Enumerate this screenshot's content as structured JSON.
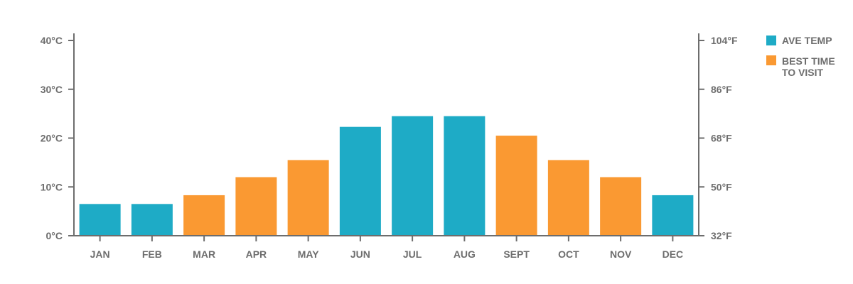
{
  "chart_data": {
    "type": "bar",
    "title": "",
    "xlabel": "",
    "ylabel": "",
    "categories": [
      "JAN",
      "FEB",
      "MAR",
      "APR",
      "MAY",
      "JUN",
      "JUL",
      "AUG",
      "SEPT",
      "OCT",
      "NOV",
      "DEC"
    ],
    "values": [
      6.5,
      6.5,
      8.3,
      12,
      15.5,
      22.3,
      24.5,
      24.5,
      20.5,
      15.5,
      12,
      8.3
    ],
    "best_time_to_visit": [
      false,
      false,
      true,
      true,
      true,
      false,
      false,
      false,
      true,
      true,
      true,
      false
    ],
    "ylim": [
      0,
      40
    ],
    "left_axis": {
      "unit": "°C",
      "ticks": [
        0,
        10,
        20,
        30,
        40
      ],
      "tick_labels": [
        "0°C",
        "10°C",
        "20°C",
        "30°C",
        "40°C"
      ]
    },
    "right_axis": {
      "unit": "°F",
      "ticks": [
        32,
        50,
        68,
        86,
        104
      ],
      "tick_labels": [
        "32°F",
        "50°F",
        "68°F",
        "86°F",
        "104°F"
      ]
    },
    "grid": false,
    "legend_position": "top-right",
    "legend": [
      {
        "label": "AVE TEMP",
        "color": "#1eabc6"
      },
      {
        "label_lines": [
          "BEST TIME",
          "TO VISIT"
        ],
        "color": "#fa9932"
      }
    ],
    "colors": {
      "ave_temp": "#1eabc6",
      "best_time": "#fa9932",
      "axis": "#6d6d6d"
    }
  }
}
